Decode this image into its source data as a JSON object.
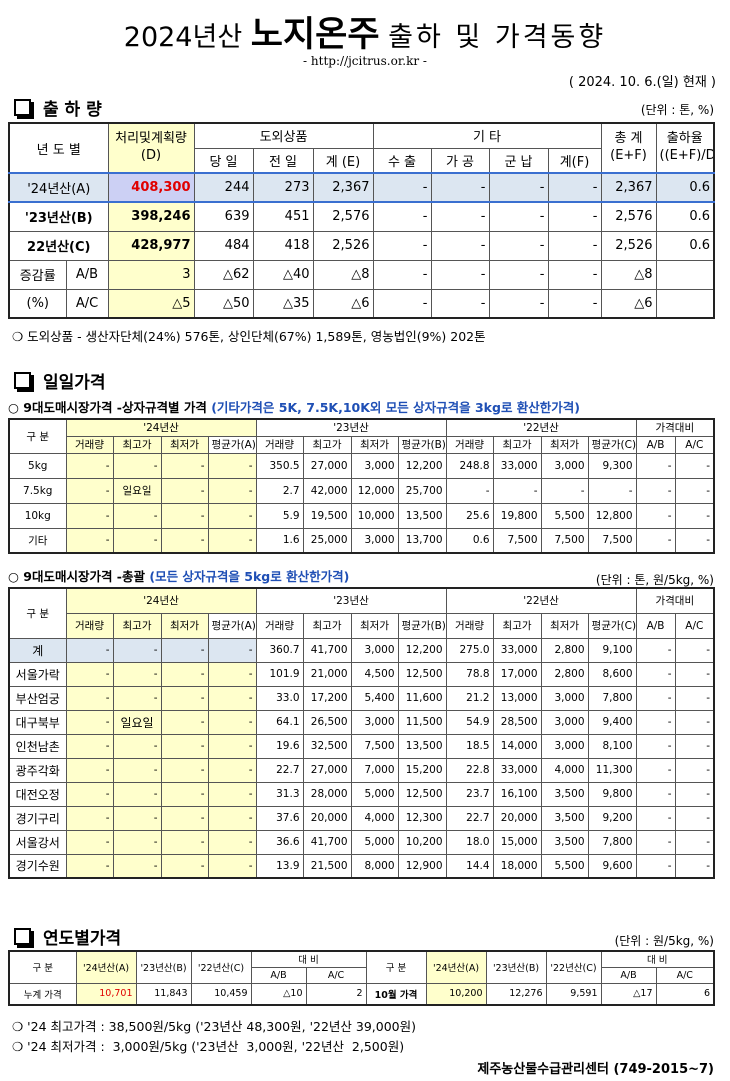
{
  "header": {
    "title_year": "2024년산",
    "title_main": "노지온주",
    "title_rest": "출하 및 가격동향",
    "url": "- http://jcitrus.or.kr -",
    "date": "( 2024. 10. 6.(일) 현재 )"
  },
  "shipment": {
    "heading": "출 하 량",
    "unit": "(단위 : 톤, %)",
    "table": {
      "header": [
        [
          "년 도 별",
          [
            "처리및계획량",
            "(D)"
          ],
          "도외상품",
          "기 타",
          [
            "총 계",
            "(E+F)"
          ],
          [
            "출하율",
            "((E+F)/D)"
          ]
        ],
        [
          "당 일",
          "전 일",
          "계 (E)",
          "수 출",
          "가 공",
          "군 납",
          "계(F)"
        ]
      ],
      "rows": [
        [
          "'24년산(A)",
          "408,300",
          "244",
          "273",
          "2,367",
          "-",
          "-",
          "-",
          "-",
          "2,367",
          "0.6"
        ],
        [
          "'23년산(B)",
          "398,246",
          "639",
          "451",
          "2,576",
          "-",
          "-",
          "-",
          "-",
          "2,576",
          "0.6"
        ],
        [
          "22년산(C)",
          "428,977",
          "484",
          "418",
          "2,526",
          "-",
          "-",
          "-",
          "-",
          "2,526",
          "0.6"
        ],
        [
          "증감률",
          "A/B",
          "3",
          "△62",
          "△40",
          "△8",
          "-",
          "-",
          "-",
          "-",
          "△8"
        ],
        [
          "(%)",
          "A/C",
          "△5",
          "△50",
          "△35",
          "△6",
          "-",
          "-",
          "-",
          "-",
          "△6"
        ]
      ]
    },
    "note": "❍ 도외상품 - 생산자단체(24%) 576톤, 상인단체(67%) 1,589톤, 영농법인(9%) 202톤"
  },
  "daily": {
    "heading": "일일가격",
    "by_size": {
      "title": "○ 9대도매시장가격 -상자규격별 가격",
      "remark": "(기타가격은 5K, 7.5K,10K외 모든 상자규격을 3kg로 환산한가격)",
      "table": {
        "header": [
          [
            "구 분",
            "'24년산",
            "'23년산",
            "'22년산",
            "가격대비"
          ],
          [
            "거래량",
            "최고가",
            "최저가",
            "평균가(A)",
            "거래량",
            "최고가",
            "최저가",
            "평균가(B)",
            "거래량",
            "최고가",
            "최저가",
            "평균가(C)",
            "A/B",
            "A/C"
          ]
        ],
        "rows": [
          [
            "5kg",
            "-",
            "-",
            "-",
            "-",
            "350.5",
            "27,000",
            "3,000",
            "12,200",
            "248.8",
            "33,000",
            "3,000",
            "9,300",
            "-",
            "-"
          ],
          [
            "7.5kg",
            "-",
            "일요일",
            "-",
            "-",
            "2.7",
            "42,000",
            "12,000",
            "25,700",
            "-",
            "-",
            "-",
            "-",
            "-",
            "-"
          ],
          [
            "10kg",
            "-",
            "-",
            "-",
            "-",
            "5.9",
            "19,500",
            "10,000",
            "13,500",
            "25.6",
            "19,800",
            "5,500",
            "12,800",
            "-",
            "-"
          ],
          [
            "기타",
            "-",
            "-",
            "-",
            "-",
            "1.6",
            "25,000",
            "3,000",
            "13,700",
            "0.6",
            "7,500",
            "7,500",
            "7,500",
            "-",
            "-"
          ]
        ]
      }
    },
    "summary": {
      "title": "○ 9대도매시장가격 -총괄",
      "remark": "(모든 상자규격을 5kg로 환산한가격)",
      "unit": "(단위 : 톤, 원/5kg, %)",
      "table": {
        "header": [
          [
            "구 분",
            "'24년산",
            "'23년산",
            "'22년산",
            "가격대비"
          ],
          [
            "거래량",
            "최고가",
            "최저가",
            "평균가(A)",
            "거래량",
            "최고가",
            "최저가",
            "평균가(B)",
            "거래량",
            "최고가",
            "최저가",
            "평균가(C)",
            "A/B",
            "A/C"
          ]
        ],
        "rows": [
          [
            "계",
            "-",
            "-",
            "-",
            "-",
            "360.7",
            "41,700",
            "3,000",
            "12,200",
            "275.0",
            "33,000",
            "2,800",
            "9,100",
            "-",
            "-"
          ],
          [
            "서울가락",
            "-",
            "-",
            "-",
            "-",
            "101.9",
            "21,000",
            "4,500",
            "12,500",
            "78.8",
            "17,000",
            "2,800",
            "8,600",
            "-",
            "-"
          ],
          [
            "부산엄궁",
            "-",
            "-",
            "-",
            "-",
            "33.0",
            "17,200",
            "5,400",
            "11,600",
            "21.2",
            "13,000",
            "3,000",
            "7,800",
            "-",
            "-"
          ],
          [
            "대구북부",
            "-",
            "일요일",
            "-",
            "-",
            "64.1",
            "26,500",
            "3,000",
            "11,500",
            "54.9",
            "28,500",
            "3,000",
            "9,400",
            "-",
            "-"
          ],
          [
            "인천남촌",
            "-",
            "-",
            "-",
            "-",
            "19.6",
            "32,500",
            "7,500",
            "13,500",
            "18.5",
            "14,000",
            "3,000",
            "8,100",
            "-",
            "-"
          ],
          [
            "광주각화",
            "-",
            "-",
            "-",
            "-",
            "22.7",
            "27,000",
            "7,000",
            "15,200",
            "22.8",
            "33,000",
            "4,000",
            "11,300",
            "-",
            "-"
          ],
          [
            "대전오정",
            "-",
            "-",
            "-",
            "-",
            "31.3",
            "28,000",
            "5,000",
            "12,500",
            "23.7",
            "16,100",
            "3,500",
            "9,800",
            "-",
            "-"
          ],
          [
            "경기구리",
            "-",
            "-",
            "-",
            "-",
            "37.6",
            "20,000",
            "4,000",
            "12,300",
            "22.7",
            "20,000",
            "3,500",
            "9,200",
            "-",
            "-"
          ],
          [
            "서울강서",
            "-",
            "-",
            "-",
            "-",
            "36.6",
            "41,700",
            "5,000",
            "10,200",
            "18.0",
            "15,000",
            "3,500",
            "7,800",
            "-",
            "-"
          ],
          [
            "경기수원",
            "-",
            "-",
            "-",
            "-",
            "13.9",
            "21,500",
            "8,000",
            "12,900",
            "14.4",
            "18,000",
            "5,500",
            "9,600",
            "-",
            "-"
          ]
        ]
      }
    }
  },
  "yearly": {
    "heading": "연도별가격",
    "unit": "(단위 : 원/5kg, %)",
    "table": {
      "header": [
        [
          "구 분",
          "'24년산(A)",
          "'23년산(B)",
          "'22년산(C)",
          "대 비",
          "구 분",
          "'24년산(A)",
          "'23년산(B)",
          "'22년산(C)",
          "대 비"
        ],
        [
          "A/B",
          "A/C",
          "A/B",
          "A/C"
        ]
      ],
      "rows": [
        [
          "누계 가격",
          "10,701",
          "11,843",
          "10,459",
          "△10",
          "2",
          "10월 가격",
          "10,200",
          "12,276",
          "9,591",
          "△17",
          "6"
        ]
      ]
    },
    "notes": [
      "❍ '24 최고가격 : 38,500원/5kg ('23년산 48,300원, '22년산 39,000원)",
      "❍ '24 최저가격 :  3,000원/5kg ('23년산  3,000원, '22년산  2,500원)"
    ]
  },
  "footer": "제주농산물수급관리센터 (749-2015~7)"
}
